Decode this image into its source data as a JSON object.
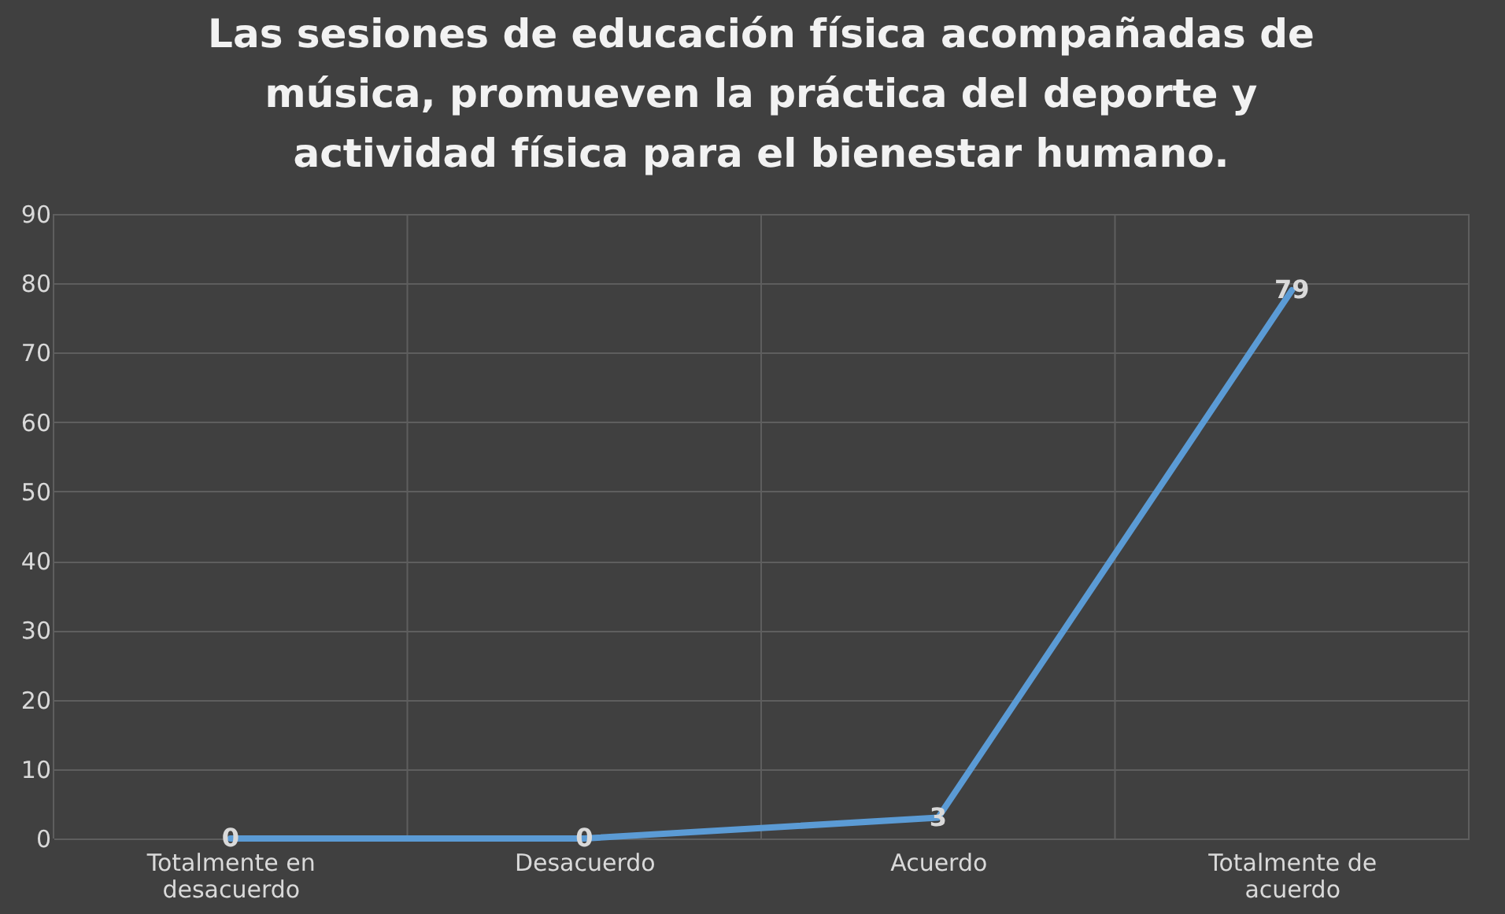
{
  "chart_data": {
    "type": "line",
    "title": "Las sesiones de educación física acompañadas de música, promueven la práctica del deporte y actividad física para el bienestar humano.",
    "categories": [
      "Totalmente en desacuerdo",
      "Desacuerdo",
      "Acuerdo",
      "Totalmente de acuerdo"
    ],
    "series": [
      {
        "color": "#5b9bd5",
        "values": [
          0,
          0,
          3,
          79
        ]
      }
    ],
    "ylim": [
      0,
      90
    ],
    "yticks": [
      0,
      10,
      20,
      30,
      40,
      50,
      60,
      70,
      80,
      90
    ],
    "grid": true,
    "data_labels": true,
    "marker": "none",
    "line_style": "solid"
  }
}
